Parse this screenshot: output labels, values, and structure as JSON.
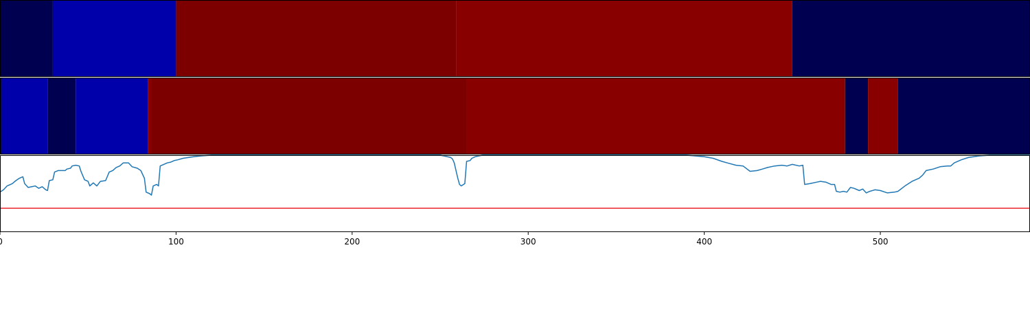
{
  "colors": {
    "navy": "#000050",
    "blue": "#0000aa",
    "dark_red": "#7c0000",
    "red": "#880000",
    "line": "#1f77b4",
    "threshold": "#e8262b",
    "axis": "#000000"
  },
  "chart_data": [
    {
      "type": "heatmap",
      "name": "segmentation-top",
      "xlim": [
        0,
        585
      ],
      "segments": [
        {
          "start": 0,
          "end": 30,
          "color": "navy"
        },
        {
          "start": 30,
          "end": 100,
          "color": "blue"
        },
        {
          "start": 100,
          "end": 259,
          "color": "dark_red"
        },
        {
          "start": 259,
          "end": 450,
          "color": "red"
        },
        {
          "start": 450,
          "end": 585,
          "color": "navy"
        }
      ]
    },
    {
      "type": "heatmap",
      "name": "segmentation-bottom",
      "xlim": [
        0,
        585
      ],
      "segments": [
        {
          "start": 0,
          "end": 1,
          "color": "navy"
        },
        {
          "start": 1,
          "end": 27,
          "color": "blue"
        },
        {
          "start": 27,
          "end": 43,
          "color": "navy"
        },
        {
          "start": 43,
          "end": 84,
          "color": "blue"
        },
        {
          "start": 84,
          "end": 86,
          "color": "red"
        },
        {
          "start": 86,
          "end": 265,
          "color": "dark_red"
        },
        {
          "start": 265,
          "end": 480,
          "color": "red"
        },
        {
          "start": 480,
          "end": 493,
          "color": "navy"
        },
        {
          "start": 493,
          "end": 510,
          "color": "red"
        },
        {
          "start": 510,
          "end": 585,
          "color": "navy"
        }
      ]
    },
    {
      "type": "line",
      "name": "score-line",
      "xlim": [
        0,
        585
      ],
      "ylim": [
        0,
        1
      ],
      "x_ticks": [
        0,
        100,
        200,
        300,
        400,
        500
      ],
      "threshold": 0.31,
      "series": [
        {
          "points": [
            [
              0,
              0.52
            ],
            [
              2,
              0.55
            ],
            [
              4,
              0.6
            ],
            [
              7,
              0.63
            ],
            [
              9,
              0.67
            ],
            [
              11,
              0.7
            ],
            [
              13,
              0.72
            ],
            [
              14,
              0.63
            ],
            [
              16,
              0.58
            ],
            [
              18,
              0.59
            ],
            [
              20,
              0.6
            ],
            [
              22,
              0.57
            ],
            [
              24,
              0.59
            ],
            [
              26,
              0.55
            ],
            [
              27,
              0.54
            ],
            [
              28,
              0.67
            ],
            [
              30,
              0.68
            ],
            [
              31,
              0.78
            ],
            [
              33,
              0.8
            ],
            [
              37,
              0.8
            ],
            [
              38,
              0.82
            ],
            [
              40,
              0.83
            ],
            [
              41,
              0.86
            ],
            [
              43,
              0.87
            ],
            [
              45,
              0.86
            ],
            [
              46,
              0.79
            ],
            [
              48,
              0.68
            ],
            [
              50,
              0.66
            ],
            [
              51,
              0.6
            ],
            [
              52,
              0.62
            ],
            [
              53,
              0.64
            ],
            [
              55,
              0.6
            ],
            [
              57,
              0.66
            ],
            [
              60,
              0.67
            ],
            [
              62,
              0.78
            ],
            [
              64,
              0.8
            ],
            [
              66,
              0.84
            ],
            [
              68,
              0.86
            ],
            [
              70,
              0.9
            ],
            [
              73,
              0.9
            ],
            [
              75,
              0.85
            ],
            [
              78,
              0.83
            ],
            [
              80,
              0.8
            ],
            [
              81,
              0.75
            ],
            [
              82,
              0.7
            ],
            [
              83,
              0.52
            ],
            [
              85,
              0.5
            ],
            [
              86,
              0.48
            ],
            [
              87,
              0.6
            ],
            [
              89,
              0.62
            ],
            [
              90,
              0.6
            ],
            [
              91,
              0.86
            ],
            [
              93,
              0.88
            ],
            [
              95,
              0.9
            ],
            [
              97,
              0.91
            ],
            [
              99,
              0.93
            ],
            [
              101,
              0.94
            ],
            [
              104,
              0.96
            ],
            [
              107,
              0.97
            ],
            [
              110,
              0.98
            ],
            [
              114,
              0.99
            ],
            [
              120,
              1.0
            ],
            [
              250,
              1.0
            ],
            [
              254,
              0.98
            ],
            [
              256,
              0.97
            ],
            [
              257,
              0.95
            ],
            [
              258,
              0.9
            ],
            [
              259,
              0.8
            ],
            [
              260,
              0.7
            ],
            [
              261,
              0.62
            ],
            [
              262,
              0.6
            ],
            [
              264,
              0.63
            ],
            [
              265,
              0.92
            ],
            [
              267,
              0.93
            ],
            [
              268,
              0.96
            ],
            [
              270,
              0.98
            ],
            [
              274,
              1.0
            ],
            [
              390,
              1.0
            ],
            [
              395,
              0.99
            ],
            [
              400,
              0.98
            ],
            [
              405,
              0.96
            ],
            [
              410,
              0.92
            ],
            [
              413,
              0.9
            ],
            [
              418,
              0.87
            ],
            [
              422,
              0.86
            ],
            [
              426,
              0.79
            ],
            [
              430,
              0.8
            ],
            [
              433,
              0.82
            ],
            [
              436,
              0.84
            ],
            [
              440,
              0.86
            ],
            [
              444,
              0.87
            ],
            [
              447,
              0.86
            ],
            [
              450,
              0.88
            ],
            [
              454,
              0.86
            ],
            [
              456,
              0.87
            ],
            [
              457,
              0.62
            ],
            [
              460,
              0.63
            ],
            [
              464,
              0.65
            ],
            [
              466,
              0.66
            ],
            [
              469,
              0.65
            ],
            [
              472,
              0.62
            ],
            [
              474,
              0.62
            ],
            [
              475,
              0.53
            ],
            [
              477,
              0.52
            ],
            [
              479,
              0.53
            ],
            [
              481,
              0.52
            ],
            [
              483,
              0.58
            ],
            [
              485,
              0.57
            ],
            [
              488,
              0.54
            ],
            [
              490,
              0.56
            ],
            [
              492,
              0.51
            ],
            [
              494,
              0.53
            ],
            [
              497,
              0.55
            ],
            [
              500,
              0.54
            ],
            [
              504,
              0.51
            ],
            [
              508,
              0.52
            ],
            [
              510,
              0.53
            ],
            [
              514,
              0.6
            ],
            [
              518,
              0.66
            ],
            [
              522,
              0.7
            ],
            [
              524,
              0.74
            ],
            [
              526,
              0.8
            ],
            [
              530,
              0.82
            ],
            [
              534,
              0.85
            ],
            [
              538,
              0.86
            ],
            [
              540,
              0.86
            ],
            [
              542,
              0.9
            ],
            [
              546,
              0.94
            ],
            [
              550,
              0.97
            ],
            [
              556,
              0.99
            ],
            [
              562,
              1.0
            ],
            [
              585,
              1.0
            ]
          ]
        }
      ]
    }
  ]
}
